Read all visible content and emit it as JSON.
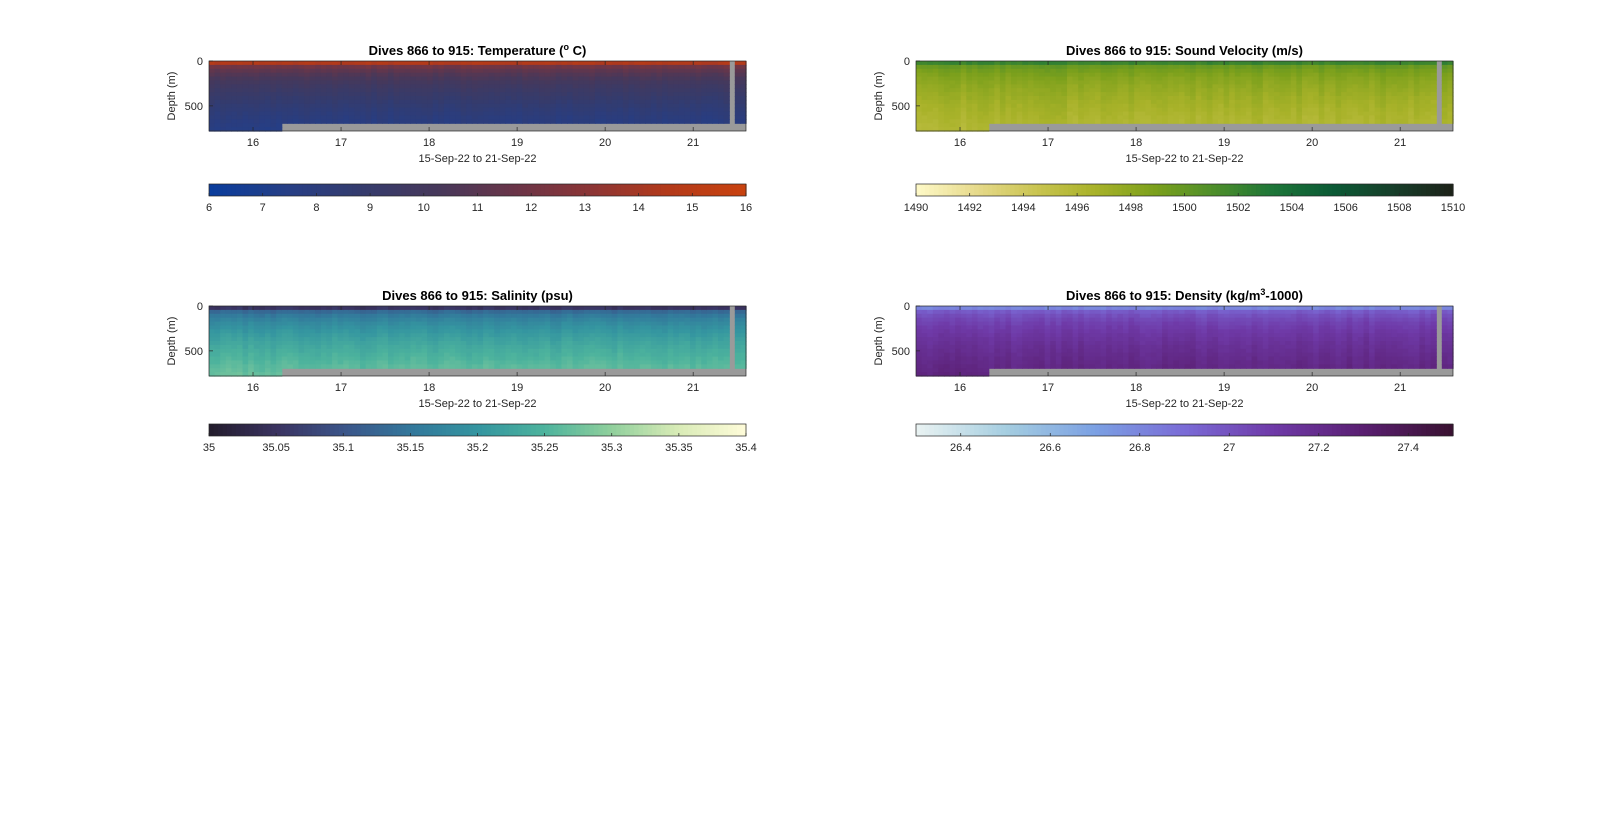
{
  "chart_data": [
    {
      "type": "heatmap",
      "title": "Dives 866 to 915: Temperature (",
      "title_sup": "o",
      "title_suffix": " C)",
      "xlabel": "15-Sep-22 to 21-Sep-22",
      "ylabel": "Depth (m)",
      "x_ticks": [
        "16",
        "17",
        "18",
        "19",
        "20",
        "21"
      ],
      "x_tick_values": [
        16,
        17,
        18,
        19,
        20,
        21
      ],
      "xlim": [
        15.5,
        21.6
      ],
      "y_ticks": [
        "0",
        "500"
      ],
      "y_tick_values": [
        0,
        500
      ],
      "ylim": [
        0,
        780
      ],
      "colorbar": {
        "ticks": [
          "6",
          "7",
          "8",
          "9",
          "10",
          "11",
          "12",
          "13",
          "14",
          "15",
          "16"
        ],
        "tick_values": [
          6,
          7,
          8,
          9,
          10,
          11,
          12,
          13,
          14,
          15,
          16
        ],
        "range": [
          6,
          16
        ],
        "colors": [
          "#0a3d9c",
          "#263e85",
          "#353b6c",
          "#47385a",
          "#6a3548",
          "#8c3535",
          "#b33a1a",
          "#c8420f"
        ]
      },
      "surface_value": 14.5,
      "deep_value": 7.5
    },
    {
      "type": "heatmap",
      "title": "Dives 866 to 915: Sound Velocity (m/s)",
      "xlabel": "15-Sep-22 to 21-Sep-22",
      "ylabel": "Depth (m)",
      "x_ticks": [
        "16",
        "17",
        "18",
        "19",
        "20",
        "21"
      ],
      "x_tick_values": [
        16,
        17,
        18,
        19,
        20,
        21
      ],
      "xlim": [
        15.5,
        21.6
      ],
      "y_ticks": [
        "0",
        "500"
      ],
      "y_tick_values": [
        0,
        500
      ],
      "ylim": [
        0,
        780
      ],
      "colorbar": {
        "ticks": [
          "1490",
          "1492",
          "1494",
          "1496",
          "1498",
          "1500",
          "1502",
          "1504",
          "1506",
          "1508",
          "1510"
        ],
        "tick_values": [
          1490,
          1492,
          1494,
          1496,
          1498,
          1500,
          1502,
          1504,
          1506,
          1508,
          1510
        ],
        "range": [
          1490,
          1510
        ],
        "colors": [
          "#fdf8c6",
          "#e6d98a",
          "#c9c451",
          "#a8b229",
          "#7ba01c",
          "#4d8e2a",
          "#1d7538",
          "#0b5a35",
          "#173f2a",
          "#1c2319"
        ]
      },
      "surface_value": 1502,
      "deep_value": 1496
    },
    {
      "type": "heatmap",
      "title": "Dives 866 to 915: Salinity (psu)",
      "xlabel": "15-Sep-22 to 21-Sep-22",
      "ylabel": "Depth (m)",
      "x_ticks": [
        "16",
        "17",
        "18",
        "19",
        "20",
        "21"
      ],
      "x_tick_values": [
        16,
        17,
        18,
        19,
        20,
        21
      ],
      "xlim": [
        15.5,
        21.6
      ],
      "y_ticks": [
        "0",
        "500"
      ],
      "y_tick_values": [
        0,
        500
      ],
      "ylim": [
        0,
        780
      ],
      "colorbar": {
        "ticks": [
          "35",
          "35.05",
          "35.1",
          "35.15",
          "35.2",
          "35.25",
          "35.3",
          "35.35",
          "35.4"
        ],
        "tick_values": [
          35,
          35.05,
          35.1,
          35.15,
          35.2,
          35.25,
          35.3,
          35.35,
          35.4
        ],
        "range": [
          35,
          35.4
        ],
        "colors": [
          "#231c2d",
          "#3a3361",
          "#3b5589",
          "#33779b",
          "#3495a0",
          "#4db39d",
          "#8fcf9c",
          "#d8ebb6",
          "#fdfbd8"
        ]
      },
      "surface_value": 35.05,
      "deep_value": 35.27
    },
    {
      "type": "heatmap",
      "title": "Dives 866 to 915: Density (kg/m",
      "title_sup": "3",
      "title_suffix": "-1000)",
      "xlabel": "15-Sep-22 to 21-Sep-22",
      "ylabel": "Depth (m)",
      "x_ticks": [
        "16",
        "17",
        "18",
        "19",
        "20",
        "21"
      ],
      "x_tick_values": [
        16,
        17,
        18,
        19,
        20,
        21
      ],
      "xlim": [
        15.5,
        21.6
      ],
      "y_ticks": [
        "0",
        "500"
      ],
      "y_tick_values": [
        0,
        500
      ],
      "ylim": [
        0,
        780
      ],
      "colorbar": {
        "ticks": [
          "26.4",
          "26.6",
          "26.8",
          "27",
          "27.2",
          "27.4"
        ],
        "tick_values": [
          26.4,
          26.6,
          26.8,
          27,
          27.2,
          27.4
        ],
        "range": [
          26.3,
          27.5
        ],
        "colors": [
          "#e8f2f2",
          "#a4cde0",
          "#7ba0e3",
          "#7a6bd6",
          "#6f3aa8",
          "#5a1f72",
          "#3a1232"
        ]
      },
      "surface_value": 26.8,
      "deep_value": 27.25
    }
  ]
}
